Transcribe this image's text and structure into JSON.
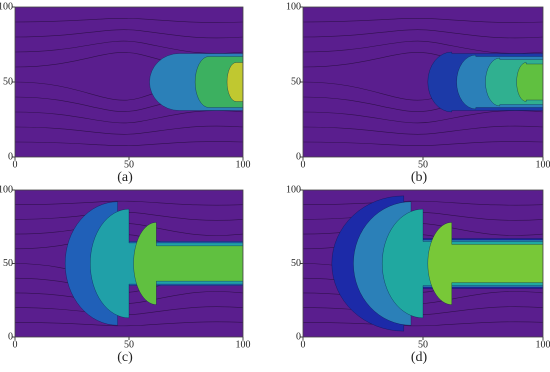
{
  "chart_data": [
    {
      "type": "contour",
      "label": "(a)",
      "xlim": [
        0,
        100
      ],
      "ylim": [
        0,
        100
      ],
      "xticks": [
        0,
        50,
        100
      ],
      "yticks": [
        0,
        50,
        100
      ]
    },
    {
      "type": "contour",
      "label": "(b)",
      "xlim": [
        0,
        100
      ],
      "ylim": [
        0,
        100
      ],
      "xticks": [
        0,
        50,
        100
      ],
      "yticks": [
        0,
        50,
        100
      ]
    },
    {
      "type": "contour",
      "label": "(c)",
      "xlim": [
        0,
        100
      ],
      "ylim": [
        0,
        100
      ],
      "xticks": [
        0,
        50,
        100
      ],
      "yticks": [
        0,
        50,
        100
      ]
    },
    {
      "type": "contour",
      "label": "(d)",
      "xlim": [
        0,
        100
      ],
      "ylim": [
        0,
        100
      ],
      "xticks": [
        0,
        50,
        100
      ],
      "yticks": [
        0,
        50,
        100
      ]
    }
  ]
}
